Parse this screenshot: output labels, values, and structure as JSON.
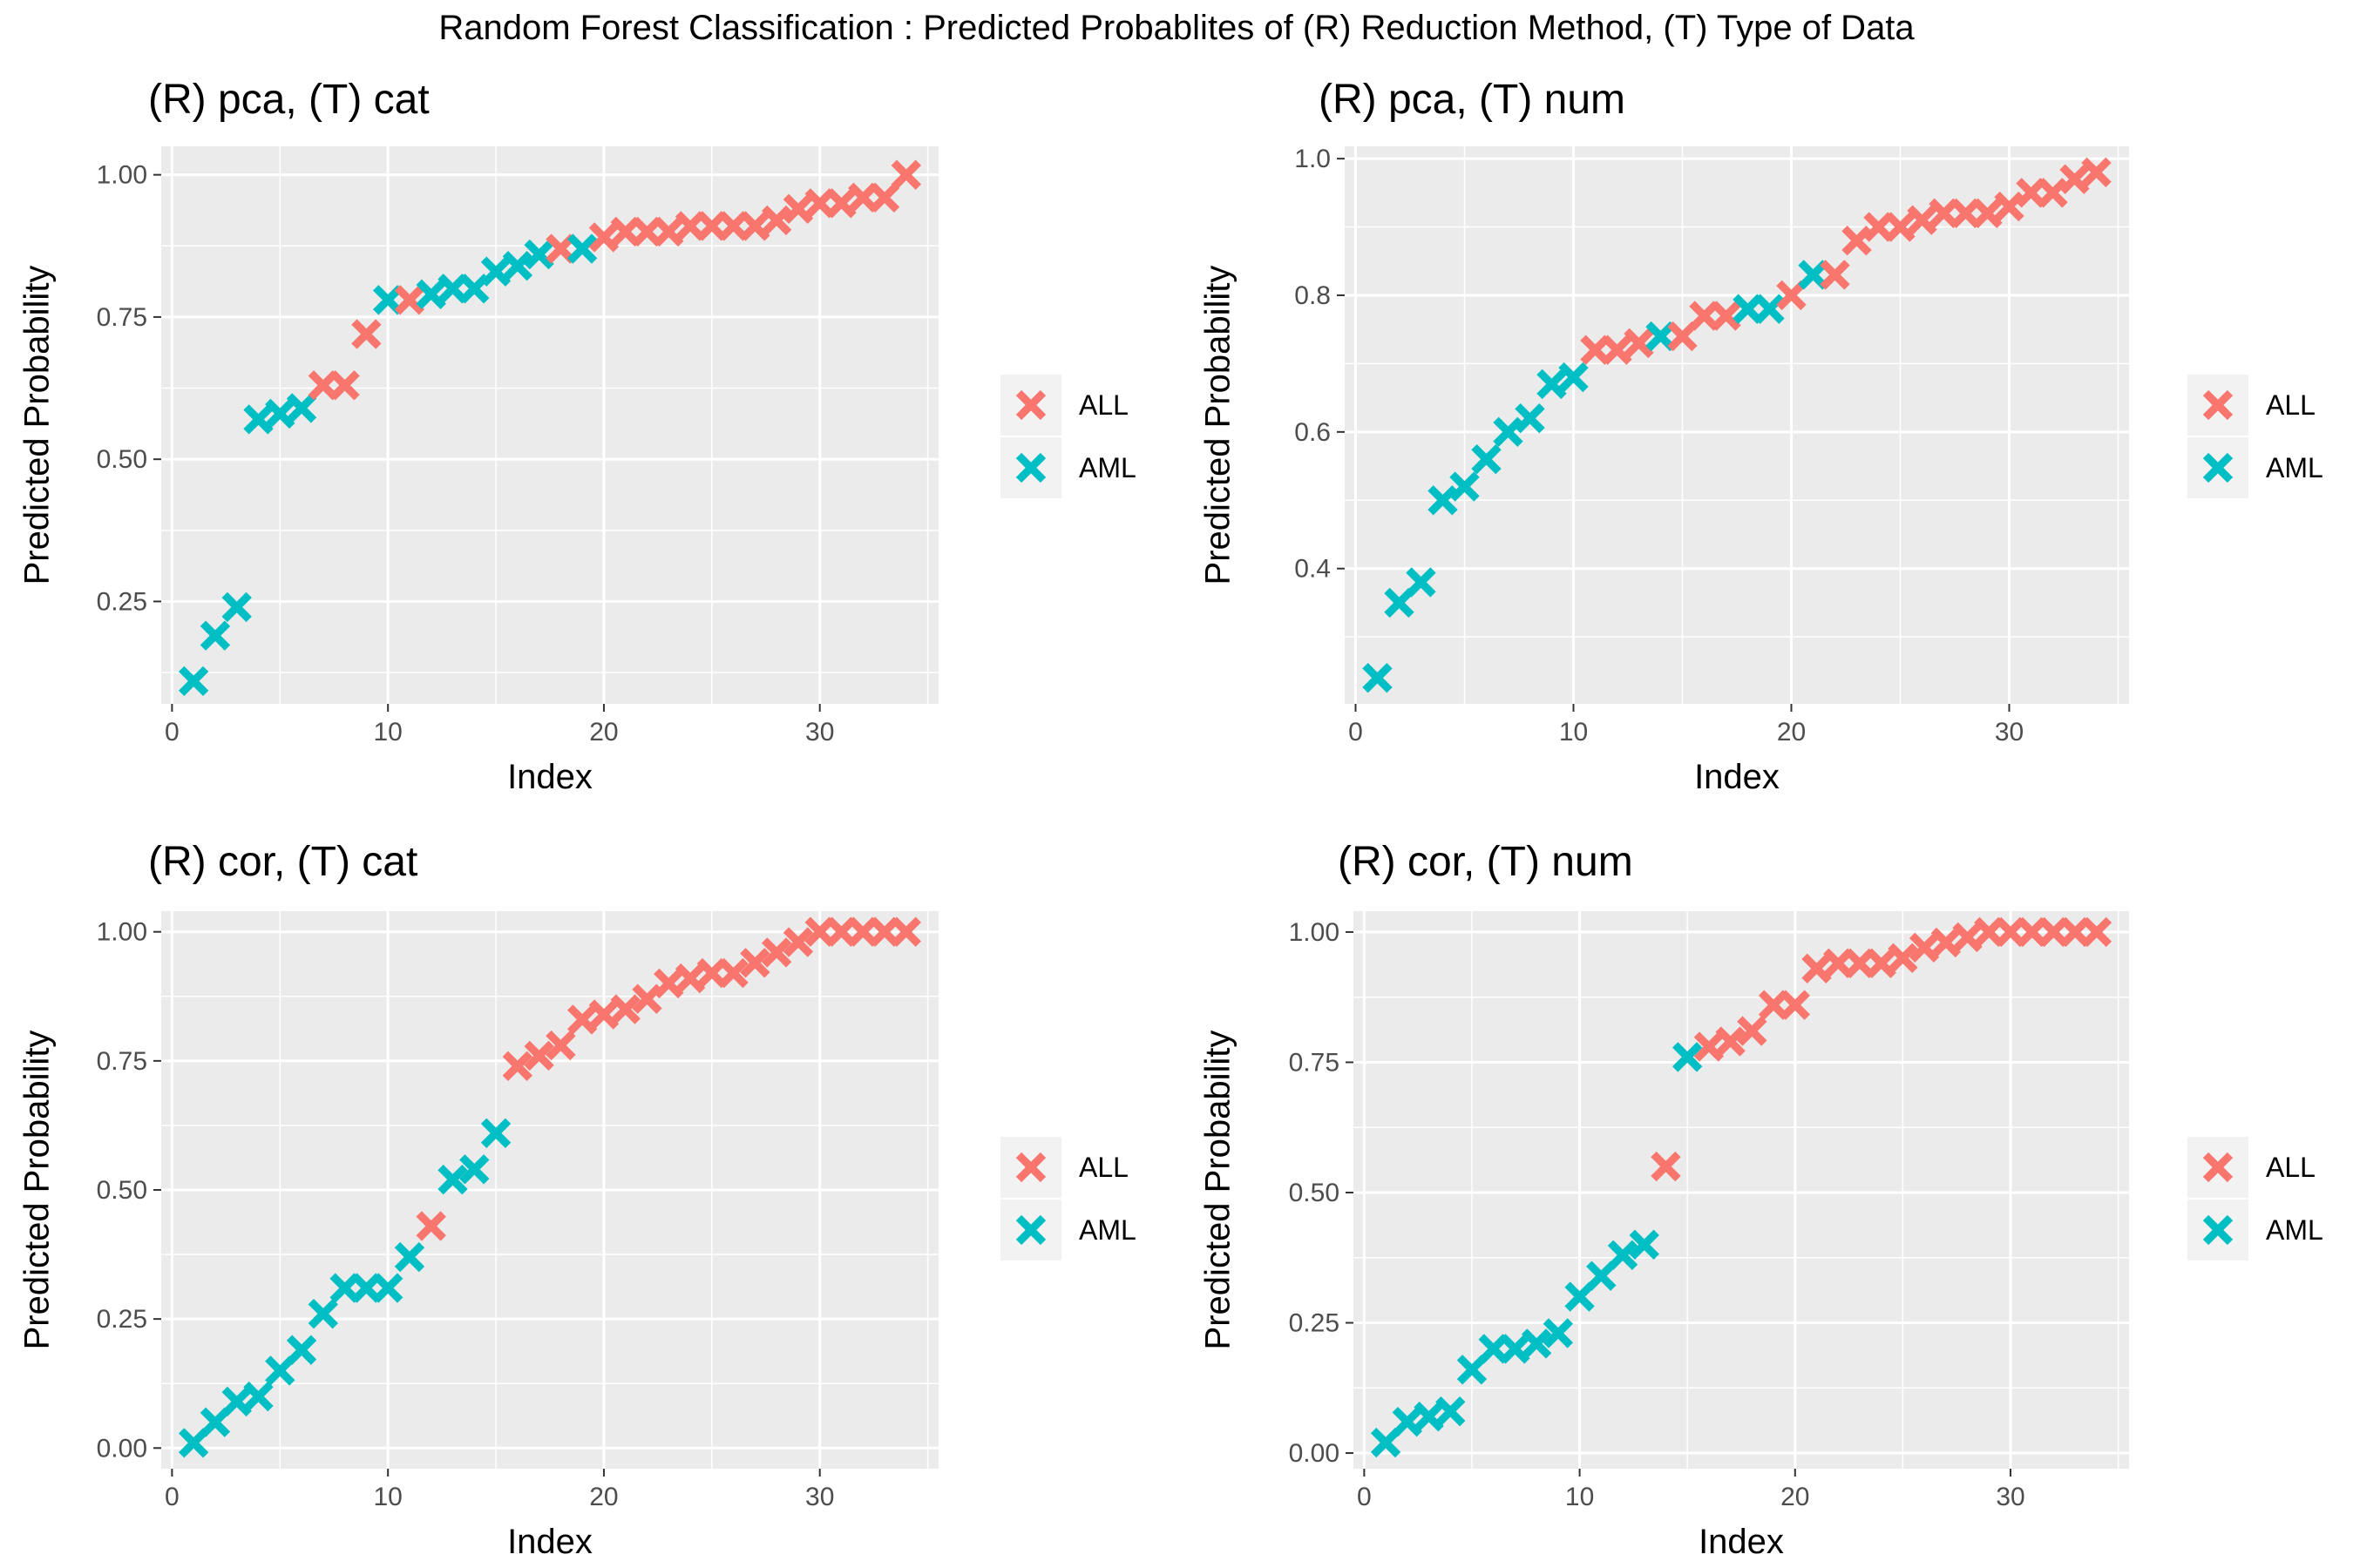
{
  "figure_title": "Random Forest Classification : Predicted Probablites of (R) Reduction Method, (T) Type of Data",
  "colors": {
    "ALL": "#F8766D",
    "AML": "#00BFC4",
    "panel_bg": "#EBEBEB",
    "grid": "#FFFFFF",
    "text": "#000000",
    "tick_text": "#4D4D4D"
  },
  "legend_entries": [
    "ALL",
    "AML"
  ],
  "chart_data": [
    {
      "type": "scatter",
      "title": "(R) pca, (T) cat",
      "xlabel": "Index",
      "ylabel": "Predicted Probability",
      "xlim": [
        -0.5,
        35.5
      ],
      "ylim": [
        0.07,
        1.05
      ],
      "xticks": [
        0,
        10,
        20,
        30
      ],
      "yticks": [
        0.25,
        0.5,
        0.75,
        1.0
      ],
      "ytick_labels": [
        "0.25",
        "0.50",
        "0.75",
        "1.00"
      ],
      "grid": true,
      "legend": "right",
      "x": [
        1,
        2,
        3,
        4,
        5,
        6,
        7,
        8,
        9,
        10,
        11,
        12,
        13,
        14,
        15,
        16,
        17,
        18,
        19,
        20,
        21,
        22,
        23,
        24,
        25,
        26,
        27,
        28,
        29,
        30,
        31,
        32,
        33,
        34
      ],
      "y": [
        0.11,
        0.19,
        0.24,
        0.57,
        0.58,
        0.59,
        0.63,
        0.63,
        0.72,
        0.78,
        0.78,
        0.79,
        0.8,
        0.8,
        0.83,
        0.84,
        0.86,
        0.87,
        0.87,
        0.89,
        0.9,
        0.9,
        0.9,
        0.91,
        0.91,
        0.91,
        0.91,
        0.92,
        0.94,
        0.95,
        0.95,
        0.96,
        0.96,
        1.0
      ],
      "class": [
        "AML",
        "AML",
        "AML",
        "AML",
        "AML",
        "AML",
        "ALL",
        "ALL",
        "ALL",
        "AML",
        "ALL",
        "AML",
        "AML",
        "AML",
        "AML",
        "AML",
        "AML",
        "ALL",
        "AML",
        "ALL",
        "ALL",
        "ALL",
        "ALL",
        "ALL",
        "ALL",
        "ALL",
        "ALL",
        "ALL",
        "ALL",
        "ALL",
        "ALL",
        "ALL",
        "ALL",
        "ALL"
      ]
    },
    {
      "type": "scatter",
      "title": "(R) pca, (T) num",
      "xlabel": "Index",
      "ylabel": "Predicted Probability",
      "xlim": [
        -0.5,
        35.5
      ],
      "ylim": [
        0.202,
        1.018
      ],
      "xticks": [
        0,
        10,
        20,
        30
      ],
      "yticks": [
        0.4,
        0.6,
        0.8,
        1.0
      ],
      "ytick_labels": [
        "0.4",
        "0.6",
        "0.8",
        "1.0"
      ],
      "grid": true,
      "legend": "right",
      "x": [
        1,
        2,
        3,
        4,
        5,
        6,
        7,
        8,
        9,
        10,
        11,
        12,
        13,
        14,
        15,
        16,
        17,
        18,
        19,
        20,
        21,
        22,
        23,
        24,
        25,
        26,
        27,
        28,
        29,
        30,
        31,
        32,
        33,
        34
      ],
      "y": [
        0.24,
        0.35,
        0.38,
        0.5,
        0.52,
        0.56,
        0.6,
        0.62,
        0.67,
        0.68,
        0.72,
        0.72,
        0.73,
        0.74,
        0.74,
        0.77,
        0.77,
        0.78,
        0.78,
        0.8,
        0.83,
        0.83,
        0.88,
        0.9,
        0.9,
        0.91,
        0.92,
        0.92,
        0.92,
        0.93,
        0.95,
        0.95,
        0.97,
        0.98
      ],
      "class": [
        "AML",
        "AML",
        "AML",
        "AML",
        "AML",
        "AML",
        "AML",
        "AML",
        "AML",
        "AML",
        "ALL",
        "ALL",
        "ALL",
        "AML",
        "ALL",
        "ALL",
        "ALL",
        "AML",
        "AML",
        "ALL",
        "AML",
        "ALL",
        "ALL",
        "ALL",
        "ALL",
        "ALL",
        "ALL",
        "ALL",
        "ALL",
        "ALL",
        "ALL",
        "ALL",
        "ALL",
        "ALL"
      ]
    },
    {
      "type": "scatter",
      "title": "(R) cor, (T) cat",
      "xlabel": "Index",
      "ylabel": "Predicted Probability",
      "xlim": [
        -0.5,
        35.5
      ],
      "ylim": [
        -0.04,
        1.04
      ],
      "xticks": [
        0,
        10,
        20,
        30
      ],
      "yticks": [
        0.0,
        0.25,
        0.5,
        0.75,
        1.0
      ],
      "ytick_labels": [
        "0.00",
        "0.25",
        "0.50",
        "0.75",
        "1.00"
      ],
      "grid": true,
      "legend": "right",
      "x": [
        1,
        2,
        3,
        4,
        5,
        6,
        7,
        8,
        9,
        10,
        11,
        12,
        13,
        14,
        15,
        16,
        17,
        18,
        19,
        20,
        21,
        22,
        23,
        24,
        25,
        26,
        27,
        28,
        29,
        30,
        31,
        32,
        33,
        34
      ],
      "y": [
        0.01,
        0.05,
        0.09,
        0.1,
        0.15,
        0.19,
        0.26,
        0.31,
        0.31,
        0.31,
        0.37,
        0.43,
        0.52,
        0.54,
        0.61,
        0.74,
        0.76,
        0.78,
        0.83,
        0.84,
        0.85,
        0.87,
        0.9,
        0.91,
        0.92,
        0.92,
        0.94,
        0.96,
        0.98,
        1.0,
        1.0,
        1.0,
        1.0,
        1.0
      ],
      "class": [
        "AML",
        "AML",
        "AML",
        "AML",
        "AML",
        "AML",
        "AML",
        "AML",
        "AML",
        "AML",
        "AML",
        "ALL",
        "AML",
        "AML",
        "AML",
        "ALL",
        "ALL",
        "ALL",
        "ALL",
        "ALL",
        "ALL",
        "ALL",
        "ALL",
        "ALL",
        "ALL",
        "ALL",
        "ALL",
        "ALL",
        "ALL",
        "ALL",
        "ALL",
        "ALL",
        "ALL",
        "ALL"
      ]
    },
    {
      "type": "scatter",
      "title": "(R) cor, (T) num",
      "xlabel": "Index",
      "ylabel": "Predicted Probability",
      "xlim": [
        -0.5,
        35.5
      ],
      "ylim": [
        -0.03,
        1.04
      ],
      "xticks": [
        0,
        10,
        20,
        30
      ],
      "yticks": [
        0.0,
        0.25,
        0.5,
        0.75,
        1.0
      ],
      "ytick_labels": [
        "0.00",
        "0.25",
        "0.50",
        "0.75",
        "1.00"
      ],
      "grid": true,
      "legend": "right",
      "x": [
        1,
        2,
        3,
        4,
        5,
        6,
        7,
        8,
        9,
        10,
        11,
        12,
        13,
        14,
        15,
        16,
        17,
        18,
        19,
        20,
        21,
        22,
        23,
        24,
        25,
        26,
        27,
        28,
        29,
        30,
        31,
        32,
        33,
        34
      ],
      "y": [
        0.02,
        0.06,
        0.07,
        0.08,
        0.16,
        0.2,
        0.2,
        0.21,
        0.23,
        0.3,
        0.34,
        0.38,
        0.4,
        0.55,
        0.76,
        0.78,
        0.79,
        0.81,
        0.86,
        0.86,
        0.93,
        0.94,
        0.94,
        0.94,
        0.95,
        0.97,
        0.98,
        0.99,
        1.0,
        1.0,
        1.0,
        1.0,
        1.0,
        1.0
      ],
      "class": [
        "AML",
        "AML",
        "AML",
        "AML",
        "AML",
        "AML",
        "AML",
        "AML",
        "AML",
        "AML",
        "AML",
        "AML",
        "AML",
        "ALL",
        "AML",
        "ALL",
        "ALL",
        "ALL",
        "ALL",
        "ALL",
        "ALL",
        "ALL",
        "ALL",
        "ALL",
        "ALL",
        "ALL",
        "ALL",
        "ALL",
        "ALL",
        "ALL",
        "ALL",
        "ALL",
        "ALL",
        "ALL"
      ]
    }
  ]
}
